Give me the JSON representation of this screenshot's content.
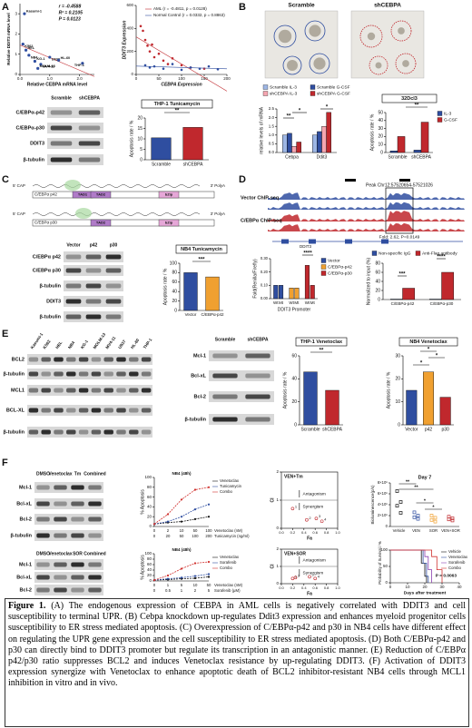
{
  "panels": {
    "A": {
      "letter": "A",
      "scatter1": {
        "xlabel": "Relative CEBPA mRNA level",
        "ylabel": "Relative DDIT3 mRNA level",
        "stats": [
          "r = -0.4588",
          "R² = 0.2105",
          "P = 0.0123"
        ],
        "xlim": [
          0,
          2.5
        ],
        "ylim": [
          0,
          3.5
        ],
        "xticks": [
          {
            "value": 0,
            "label": "0.0"
          },
          {
            "value": 1,
            "label": "1.0"
          },
          {
            "value": 2,
            "label": "2.0"
          }
        ],
        "yticks": [
          0,
          1,
          2,
          3
        ],
        "labels": [
          "Kasumi-1",
          "K562",
          "HEL",
          "NB4",
          "KG-1",
          "MV4-11",
          "MOLM-13",
          "U937",
          "HL-60",
          "THP-1"
        ],
        "x": [
          0.15,
          0.1,
          0.2,
          0.3,
          0.5,
          0.7,
          0.6,
          1.0,
          1.3,
          2.1
        ],
        "y": [
          3.0,
          1.5,
          1.2,
          0.95,
          0.65,
          0.5,
          0.3,
          0.85,
          0.7,
          0.55
        ]
      },
      "scatter2": {
        "xlabel": "CEBPA Expression",
        "ylabel": "DDIT3 Expression",
        "xlim": [
          0,
          200
        ],
        "ylim": [
          0,
          600
        ],
        "xticks": [
          0,
          50,
          100,
          150,
          200
        ],
        "yticks": [
          0,
          200,
          400,
          600
        ],
        "series": [
          {
            "name": "AML (r = -0.4811, p = 0.0128)",
            "color": "#c0282d",
            "x": [
              10,
              15,
              20,
              25,
              30,
              35,
              40,
              50,
              60,
              70,
              80,
              100,
              120,
              150
            ],
            "values": [
              420,
              380,
              300,
              250,
              200,
              260,
              150,
              180,
              120,
              90,
              140,
              80,
              60,
              50
            ]
          },
          {
            "name": "Normal Control (r = 0.0332, p = 0.8863)",
            "color": "#2f4ea0",
            "x": [
              20,
              30,
              40,
              60,
              80,
              100,
              120,
              140,
              160,
              180
            ],
            "values": [
              80,
              60,
              70,
              50,
              90,
              40,
              60,
              50,
              70,
              45
            ]
          }
        ]
      },
      "blot": {
        "columns": [
          "Scramble",
          "shCEBPA"
        ],
        "rows": [
          "C/EBPα-p42",
          "C/EBPα-p30",
          "DDIT3",
          "β-tubulin"
        ]
      },
      "bar": {
        "title": "THP-1 Tunicamycin",
        "ylabel": "Apoptosis rate / %",
        "categories": [
          "Scramble",
          "shCEBPA"
        ],
        "values": [
          10.5,
          15.5
        ],
        "colors": [
          "#2f4ea0",
          "#c0282d"
        ],
        "ylim": [
          0,
          20
        ],
        "yticks": [
          0,
          5,
          10,
          15,
          20
        ],
        "annotations": [
          "**"
        ]
      }
    },
    "B": {
      "letter": "B",
      "images": [
        "Scramble",
        "shCEBPA"
      ],
      "bar1": {
        "ylabel": "relative levels of mRNA",
        "categories": [
          "Cebpa",
          "Ddit3"
        ],
        "ylim": [
          0,
          2.5
        ],
        "yticks": [
          {
            "value": 0,
            "label": "0.0"
          },
          0.5,
          {
            "value": 1,
            "label": "1.0"
          },
          1.5,
          {
            "value": 2,
            "label": "2.0"
          },
          2.5
        ],
        "series": [
          {
            "name": "Scramble IL-3",
            "color": "#9db6e4",
            "values": [
              1.0,
              1.0
            ]
          },
          {
            "name": "Scramble G-CSF",
            "color": "#2f4ea0",
            "values": [
              1.1,
              1.2
            ]
          },
          {
            "name": "shCEBPA IL-3",
            "color": "#f4a6b0",
            "values": [
              0.35,
              1.5
            ]
          },
          {
            "name": "shCEBPA G-CSF",
            "color": "#c0282d",
            "values": [
              0.6,
              2.3
            ]
          }
        ],
        "annotations": [
          "**",
          "*",
          "*"
        ]
      },
      "bar2": {
        "title": "32Dcl3",
        "ylabel": "Apoptosis rate / %",
        "categories": [
          "Scramble",
          "shCEBPA"
        ],
        "ylim": [
          0,
          50
        ],
        "yticks": [
          0,
          10,
          20,
          30,
          40,
          50
        ],
        "series": [
          {
            "name": "IL-3",
            "color": "#2f4ea0",
            "values": [
              2,
              3
            ]
          },
          {
            "name": "G-CSF",
            "color": "#c0282d",
            "values": [
              20,
              38
            ]
          }
        ],
        "annotations": [
          "**"
        ]
      }
    },
    "C": {
      "letter": "C",
      "cap": "5' CAP",
      "polya": "3' PolyA",
      "constructs": [
        {
          "name": "C/EBPα p42",
          "domains": [
            "TAD1",
            "TAD2",
            "bZip"
          ]
        },
        {
          "name": "C/EBPα p30",
          "domains": [
            "TAD2",
            "bZip"
          ]
        }
      ],
      "blot": {
        "columns": [
          "Vector",
          "p42",
          "p30"
        ],
        "rows": [
          "C/EBPα p42",
          "C/EBPα p30",
          "β-tubulin",
          "DDIT3",
          "β-tubulin"
        ]
      },
      "bar": {
        "title": "NB4 Tunicamycin",
        "ylabel": "Apoptosis rate / %",
        "categories": [
          "Vector",
          "C/EBPα-p42"
        ],
        "values": [
          80,
          71
        ],
        "colors": [
          "#2f4ea0",
          "#f0a030"
        ],
        "ylim": [
          0,
          100
        ],
        "yticks": [
          0,
          20,
          40,
          60,
          80,
          100
        ],
        "annotations": [
          "***"
        ]
      }
    },
    "D": {
      "letter": "D",
      "peak": "Peak Chr12:57520654-57521026",
      "tracks": [
        "Vector ChIP-seq",
        "C/EBPα ChIP-seq"
      ],
      "fold": "Fold: 2.62, P=0.0149",
      "gene": "DDIT3",
      "bar1": {
        "ylabel": "Fold(Renilla/Firefly)",
        "xlabel": "DDIT3 Promoter",
        "categories": [
          "Wt",
          "Mt"
        ],
        "ylim": [
          0,
          0.3
        ],
        "yticks": [
          {
            "value": 0,
            "label": "0.00"
          },
          {
            "value": 0.1,
            "label": "0.10"
          },
          {
            "value": 0.2,
            "label": "0.20"
          },
          {
            "value": 0.3,
            "label": "0.30"
          }
        ],
        "series": [
          {
            "name": "Vector",
            "color": "#2f4ea0",
            "values": [
              0.1,
              0.1
            ]
          },
          {
            "name": "C/EBPα-p42",
            "color": "#f0a030",
            "values": [
              0.08,
              0.08
            ]
          },
          {
            "name": "C/EBPα-p30",
            "color": "#c0282d",
            "values": [
              0.25,
              0.1
            ]
          }
        ],
        "annotations": [
          "****"
        ]
      },
      "bar2": {
        "ylabel": "Normalized to input (%)",
        "categories": [
          "C/EBPα-p42",
          "C/EBPα-p30"
        ],
        "ylim": [
          0,
          80
        ],
        "yticks": [
          0,
          20,
          40,
          60,
          80
        ],
        "series": [
          {
            "name": "Non-specific IgG",
            "color": "#2f4ea0",
            "values": [
              1,
              1
            ]
          },
          {
            "name": "Anti-Flag antibody",
            "color": "#c0282d",
            "values": [
              25,
              60
            ]
          }
        ],
        "annotations": [
          "***",
          "****"
        ]
      }
    },
    "E": {
      "letter": "E",
      "blot1": {
        "columns": [
          "Kasumi-1",
          "K562",
          "HEL",
          "NB4",
          "KG-1",
          "MOLM-13",
          "MV4-11",
          "U937",
          "HL-60",
          "THP-1"
        ],
        "rows": [
          "BCL2",
          "β-tubulin",
          "MCL1",
          "BCL-XL",
          "β-tubulin"
        ]
      },
      "blot2": {
        "columns": [
          "Scramble",
          "shCEBPA"
        ],
        "rows": [
          "Mcl-1",
          "Bcl-xL",
          "Bcl-2",
          "β-tubulin"
        ]
      },
      "bar1": {
        "title": "THP-1 Venetoclax",
        "ylabel": "Apoptosis rate / %",
        "categories": [
          "Scramble",
          "shCEBPA"
        ],
        "values": [
          46,
          30
        ],
        "colors": [
          "#2f4ea0",
          "#c0282d"
        ],
        "ylim": [
          0,
          60
        ],
        "yticks": [
          0,
          20,
          40,
          60
        ],
        "annotations": [
          "**"
        ]
      },
      "bar2": {
        "title": "NB4 Venetoclax",
        "ylabel": "Apoptosis rate / %",
        "categories": [
          "Vector",
          "p42",
          "p30"
        ],
        "values": [
          15,
          23,
          12
        ],
        "colors": [
          "#2f4ea0",
          "#f0a030",
          "#c0282d"
        ],
        "ylim": [
          0,
          30
        ],
        "yticks": [
          0,
          10,
          20,
          30
        ],
        "annotations": [
          "*",
          "*",
          "*"
        ]
      }
    },
    "F": {
      "letter": "F",
      "blot1": {
        "columns": [
          "DMSO",
          "Venetoclax",
          "Tm",
          "Combined"
        ],
        "rows": [
          "Mcl-1",
          "Bcl-xL",
          "Bcl-2",
          "β-tubulin"
        ]
      },
      "line1": {
        "title": "NB4 (48h)",
        "ylabel": "% Apoptosis",
        "ylim": [
          0,
          100
        ],
        "yticks": [
          0,
          20,
          40,
          60,
          80,
          100
        ],
        "x_axes": [
          {
            "label": "Venetoclax (nM)",
            "categories": [
              "0",
              "2",
              "10",
              "50",
              "100"
            ]
          },
          {
            "label": "Tunicamycin (ng/ml)",
            "categories": [
              "0",
              "20",
              "50",
              "100",
              "200"
            ]
          }
        ],
        "series": [
          {
            "name": "Venetoclax",
            "color": "#111111",
            "values": [
              5,
              8,
              10,
              15,
              20
            ]
          },
          {
            "name": "Tunicamycin",
            "color": "#2f4ea0",
            "values": [
              5,
              10,
              20,
              35,
              45
            ]
          },
          {
            "name": "Combo",
            "color": "#d0302d",
            "values": [
              5,
              25,
              55,
              75,
              80
            ]
          }
        ]
      },
      "ci1": {
        "title": "VEN+Tm",
        "xlabel": "Fa",
        "ylabel": "CI",
        "antagonism": "Antagonism",
        "synergism": "Synergism",
        "xlim": [
          0,
          1
        ],
        "ylim": [
          0,
          2
        ],
        "yticks": [
          0,
          1,
          2
        ],
        "xticks": [
          {
            "value": 0,
            "label": "0.0"
          },
          0.2,
          0.4,
          0.6,
          0.8,
          {
            "value": 1,
            "label": "1.0"
          }
        ],
        "labels": [
          "1",
          "2",
          "3",
          "4"
        ],
        "fa": [
          0.2,
          0.45,
          0.62,
          0.72
        ],
        "ci": [
          0.7,
          0.3,
          0.35,
          0.25
        ]
      },
      "biolum": {
        "title": "Day 7",
        "ylabel": "Bioluminescence(p/s)",
        "categories": [
          "Vehicle",
          "VEN",
          "SOR",
          "VEN+SOR"
        ],
        "colors": [
          "#111111",
          "#2f4ea0",
          "#f0a030",
          "#c0282d"
        ],
        "ylim": [
          0,
          8000000
        ],
        "yticks": [
          0,
          {
            "value": 2000000,
            "label": "2×10⁶"
          },
          {
            "value": 4000000,
            "label": "4×10⁶"
          },
          {
            "value": 6000000,
            "label": "6×10⁶"
          },
          {
            "value": 8000000,
            "label": "8×10⁶"
          }
        ],
        "points": [
          [
            6500000,
            4500000,
            3800000,
            2500000
          ],
          [
            2600000,
            2000000,
            1700000,
            1400000
          ],
          [
            2000000,
            1600000,
            1200000,
            900000
          ],
          [
            1800000,
            1500000,
            1300000,
            1100000
          ]
        ],
        "annotations": [
          "**",
          "**",
          "*",
          "*"
        ]
      },
      "blot2": {
        "columns": [
          "DMSO",
          "Venetoclax",
          "SOR",
          "Combined"
        ],
        "rows": [
          "Mcl-1",
          "Bcl-xL",
          "Bcl-2"
        ]
      },
      "line2": {
        "title": "NB4 (48h)",
        "ylabel": "% Apoptosis",
        "ylim": [
          0,
          100
        ],
        "yticks": [
          0,
          20,
          40,
          60,
          80,
          100
        ],
        "x_axes": [
          {
            "label": "Venetoclax (nM)",
            "categories": [
              "0",
              "1",
              "5",
              "10",
              "50"
            ]
          },
          {
            "label": "Sorafenib (μM)",
            "categories": [
              "0",
              "0.5",
              "1",
              "2",
              "5"
            ]
          }
        ],
        "series": [
          {
            "name": "Venetoclax",
            "color": "#111111",
            "values": [
              3,
              5,
              8,
              10,
              15
            ]
          },
          {
            "name": "Sorafenib",
            "color": "#2f4ea0",
            "values": [
              3,
              8,
              12,
              18,
              25
            ]
          },
          {
            "name": "Combo",
            "color": "#d0302d",
            "values": [
              3,
              20,
              45,
              65,
              70
            ]
          }
        ]
      },
      "ci2": {
        "title": "VEN+SOR",
        "xlabel": "Fa",
        "ylabel": "CI",
        "antagonism": "Antagonism",
        "synergism": "Synergism",
        "xlim": [
          0,
          1
        ],
        "ylim": [
          0,
          2
        ],
        "yticks": [
          0,
          1,
          2
        ],
        "xticks": [
          {
            "value": 0,
            "label": "0.0"
          },
          0.2,
          0.4,
          0.6,
          0.8,
          {
            "value": 1,
            "label": "1.0"
          }
        ],
        "labels": [
          "1",
          "2",
          "3",
          "4"
        ],
        "fa": [
          0.2,
          0.25,
          0.5,
          0.6
        ],
        "ci": [
          0.3,
          0.35,
          0.4,
          0.3
        ]
      },
      "survival": {
        "ylabel": "Probability of Survival / %",
        "xlabel": "Days after treatment",
        "xlim": [
          0,
          40
        ],
        "xticks": [
          0,
          10,
          20,
          30,
          40
        ],
        "ylim": [
          0,
          100
        ],
        "yticks": [
          0,
          50,
          100
        ],
        "annotation": "P = 0.0063",
        "series": [
          {
            "name": "Vehicle",
            "color": "#111111",
            "x": [
              0,
              18,
              20,
              21
            ],
            "values": [
              100,
              60,
              20,
              0
            ]
          },
          {
            "name": "Venetoclax",
            "color": "#2f4ea0",
            "x": [
              0,
              19,
              21,
              22
            ],
            "values": [
              100,
              60,
              20,
              0
            ]
          },
          {
            "name": "Sorafenib",
            "color": "#8a3fb0",
            "x": [
              0,
              20,
              22,
              24
            ],
            "values": [
              100,
              80,
              40,
              0
            ]
          },
          {
            "name": "Combo",
            "color": "#d0302d",
            "x": [
              0,
              24,
              27,
              30
            ],
            "values": [
              100,
              80,
              40,
              0
            ]
          }
        ]
      }
    }
  },
  "caption": {
    "label": "Figure 1.",
    "text": "(A) The endogenous expression of CEBPA in AML cells is negatively correlated with DDIT3 and cell susceptibility to terminal UPR. (B) Cebpa knockdown up-regulates Ddit3 expression and enhances myeloid progenitor cells susceptibility to ER stress mediated apoptosis. (C) Overexpression of C/EBPα-p42 and p30 in NB4 cells have different effect on regulating the UPR gene expression and the cell susceptibility to ER stress mediated apoptosis. (D) Both C/EBPα-p42 and p30 can directly bind to DDIT3 promoter but regulate its transcription in an antagonistic manner. (E) Reduction of C/EBPα p42/p30 ratio suppresses BCL2 and induces Venetoclax resistance by up-regulating DDIT3. (F) Activation of DDIT3 expression synergize with Venetoclax to enhance apoptotic death of BCL2 inhibitor-resistant NB4 cells through MCL1 inhibition in vitro and in vivo."
  }
}
